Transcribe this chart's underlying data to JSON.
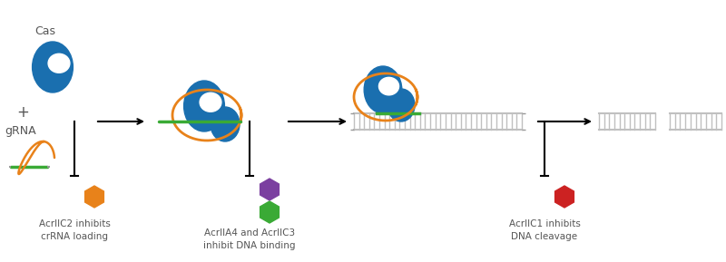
{
  "bg_color": "#ffffff",
  "text_color": "#555555",
  "blue_color": "#1a6faf",
  "orange_color": "#e8821a",
  "green_color": "#3aaa35",
  "purple_color": "#7b3fa0",
  "red_color": "#cc2222",
  "gray_color": "#c0c0c0",
  "dark_gray": "#999999",
  "label1": "AcrIIC2 inhibits\ncrRNA loading",
  "label2": "AcrIIA4 and AcrIIC3\ninhibit DNA binding",
  "label3": "AcrIIC1 inhibits\nDNA cleavage",
  "cas_label": "Cas",
  "grna_label": "gRNA",
  "figsize": [
    8.0,
    2.89
  ],
  "dpi": 100
}
